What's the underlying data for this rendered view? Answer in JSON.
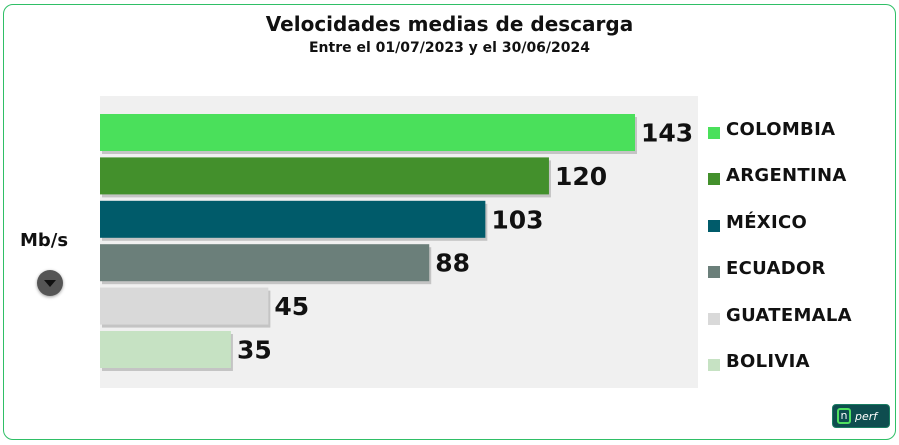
{
  "header": {
    "title": "Velocidades medias de descarga",
    "subtitle": "Entre el 01/07/2023 y el 30/06/2024"
  },
  "unit_selector": {
    "label": "Mb/s",
    "icon": "chevron-down-icon"
  },
  "logo": {
    "mark": "n",
    "text": "perf"
  },
  "chart_data": {
    "type": "bar",
    "orientation": "horizontal",
    "categories": [
      "COLOMBIA",
      "ARGENTINA",
      "MÉXICO",
      "ECUADOR",
      "GUATEMALA",
      "BOLIVIA"
    ],
    "values": [
      143,
      120,
      103,
      88,
      45,
      35
    ],
    "labels": [
      "143",
      "120",
      "103",
      "88",
      "45",
      "35"
    ],
    "colors": [
      "#4ae05b",
      "#43902c",
      "#005b6a",
      "#6b7f7a",
      "#d9d9d9",
      "#c6e2c3"
    ],
    "unit": "Mb/s",
    "xlim": [
      0,
      143
    ],
    "grid": false,
    "legend_position": "right",
    "plot_background": "#f0f0f0"
  }
}
